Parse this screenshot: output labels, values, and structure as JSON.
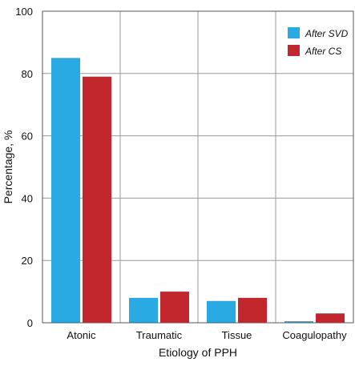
{
  "chart_data": {
    "type": "bar",
    "title": "",
    "xlabel": "Etiology of PPH",
    "ylabel": "Percentage, %",
    "ylim": [
      0,
      100
    ],
    "yticks": [
      0,
      20,
      40,
      60,
      80,
      100
    ],
    "grid": true,
    "legend_position": "top-right",
    "categories": [
      "Atonic",
      "Traumatic",
      "Tissue",
      "Coagulopathy"
    ],
    "series": [
      {
        "name": "After SVD",
        "color": "#29aae2",
        "values": [
          85,
          8,
          7,
          0.5
        ]
      },
      {
        "name": "After CS",
        "color": "#c1272d",
        "values": [
          79,
          10,
          8,
          3
        ]
      }
    ]
  }
}
